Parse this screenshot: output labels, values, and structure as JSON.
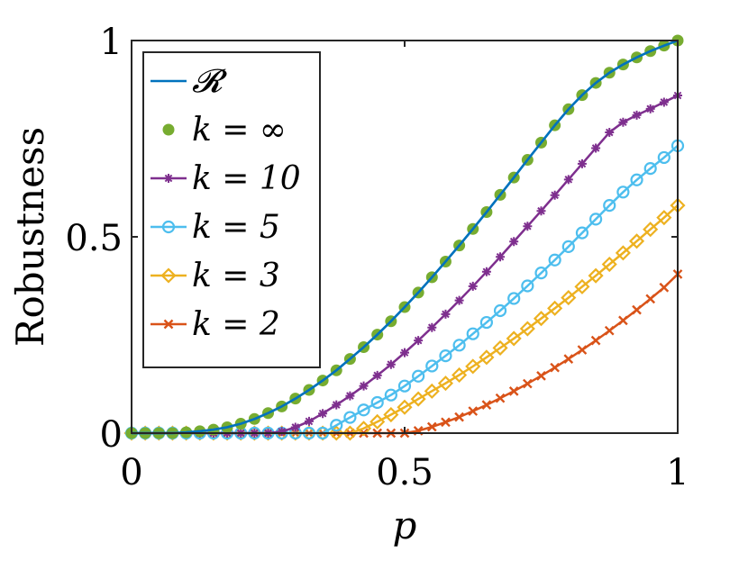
{
  "chart_data": {
    "type": "line",
    "title": "",
    "xlabel": "p",
    "ylabel": "Robustness",
    "xlim": [
      0,
      1
    ],
    "ylim": [
      0,
      1
    ],
    "xticks": [
      "0",
      "0.5",
      "1"
    ],
    "yticks": [
      "0",
      "0.5",
      "1"
    ],
    "grid": false,
    "legend_position": "top-left",
    "x": [
      0,
      0.025,
      0.05,
      0.075,
      0.1,
      0.125,
      0.15,
      0.175,
      0.2,
      0.225,
      0.25,
      0.275,
      0.3,
      0.325,
      0.35,
      0.375,
      0.4,
      0.425,
      0.45,
      0.475,
      0.5,
      0.525,
      0.55,
      0.575,
      0.6,
      0.625,
      0.65,
      0.675,
      0.7,
      0.725,
      0.75,
      0.775,
      0.8,
      0.825,
      0.85,
      0.875,
      0.9,
      0.925,
      0.95,
      0.975,
      1
    ],
    "series": [
      {
        "name": "𝓡",
        "color": "#0072bd",
        "marker": "none",
        "values": [
          0,
          0,
          0,
          0,
          0.002,
          0.005,
          0.009,
          0.015,
          0.024,
          0.036,
          0.051,
          0.068,
          0.088,
          0.11,
          0.134,
          0.16,
          0.189,
          0.219,
          0.251,
          0.285,
          0.321,
          0.358,
          0.397,
          0.437,
          0.478,
          0.52,
          0.563,
          0.607,
          0.651,
          0.696,
          0.74,
          0.784,
          0.825,
          0.861,
          0.892,
          0.918,
          0.939,
          0.957,
          0.973,
          0.987,
          1.0
        ]
      },
      {
        "name": "k = ∞",
        "color": "#77ac30",
        "marker": "dot",
        "values": [
          0,
          0,
          0,
          0,
          0.002,
          0.005,
          0.009,
          0.015,
          0.024,
          0.036,
          0.051,
          0.068,
          0.088,
          0.11,
          0.134,
          0.16,
          0.189,
          0.219,
          0.251,
          0.285,
          0.321,
          0.358,
          0.397,
          0.437,
          0.478,
          0.52,
          0.563,
          0.607,
          0.651,
          0.696,
          0.74,
          0.784,
          0.825,
          0.861,
          0.892,
          0.918,
          0.939,
          0.957,
          0.973,
          0.987,
          1.0
        ]
      },
      {
        "name": "k = 10",
        "color": "#7e2f8e",
        "marker": "asterisk",
        "values": [
          0,
          0,
          0,
          0,
          0,
          0,
          0,
          0,
          0,
          0,
          0,
          0.004,
          0.015,
          0.03,
          0.05,
          0.072,
          0.095,
          0.12,
          0.147,
          0.175,
          0.205,
          0.236,
          0.269,
          0.303,
          0.338,
          0.374,
          0.411,
          0.449,
          0.488,
          0.527,
          0.566,
          0.606,
          0.646,
          0.686,
          0.726,
          0.766,
          0.792,
          0.81,
          0.826,
          0.843,
          0.86
        ]
      },
      {
        "name": "k = 5",
        "color": "#4dbeee",
        "marker": "circle",
        "values": [
          0,
          0,
          0,
          0,
          0,
          0,
          0,
          0,
          0,
          0,
          0,
          0,
          0,
          0,
          0,
          0.02,
          0.04,
          0.059,
          0.078,
          0.097,
          0.12,
          0.145,
          0.171,
          0.197,
          0.224,
          0.253,
          0.282,
          0.312,
          0.343,
          0.375,
          0.408,
          0.441,
          0.475,
          0.51,
          0.545,
          0.58,
          0.614,
          0.645,
          0.674,
          0.702,
          0.732
        ]
      },
      {
        "name": "k = 3",
        "color": "#edb120",
        "marker": "diamond",
        "values": [
          0,
          0,
          0,
          0,
          0,
          0,
          0,
          0,
          0,
          0,
          0,
          0,
          0,
          0,
          0,
          0,
          0,
          0.012,
          0.029,
          0.047,
          0.066,
          0.087,
          0.107,
          0.127,
          0.148,
          0.17,
          0.193,
          0.217,
          0.241,
          0.266,
          0.292,
          0.318,
          0.345,
          0.373,
          0.401,
          0.43,
          0.459,
          0.489,
          0.519,
          0.549,
          0.58
        ]
      },
      {
        "name": "k = 2",
        "color": "#d95319",
        "marker": "x",
        "values": [
          0,
          0,
          0,
          0,
          0,
          0,
          0,
          0,
          0,
          0,
          0,
          0,
          0,
          0,
          0,
          0,
          0,
          0,
          0,
          0,
          0,
          0.006,
          0.016,
          0.028,
          0.041,
          0.056,
          0.072,
          0.089,
          0.107,
          0.126,
          0.146,
          0.167,
          0.189,
          0.212,
          0.236,
          0.261,
          0.287,
          0.314,
          0.342,
          0.371,
          0.405
        ]
      }
    ]
  }
}
